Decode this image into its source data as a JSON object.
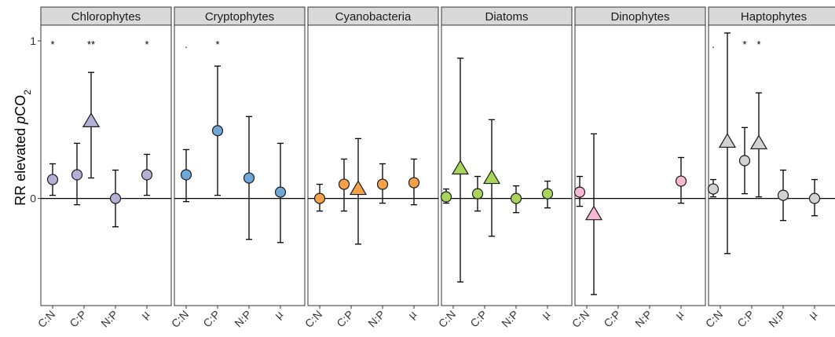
{
  "chart_data": {
    "type": "scatter",
    "subtype": "faceted point-range",
    "ylabel_prefix": "RR elevated ",
    "ylabel_italic": "p",
    "ylabel_main": "CO",
    "ylabel_sub": "2",
    "yticks": [
      0,
      1
    ],
    "ylim": [
      -0.68,
      1.1
    ],
    "categories": [
      "C:N",
      "C:P",
      "N:P",
      "µ"
    ],
    "facets": [
      {
        "name": "Chlorophytes",
        "color": "#b3afd5",
        "points": [
          {
            "cat": "C:N",
            "shape": "circle",
            "y": 0.12,
            "lo": 0.02,
            "hi": 0.22,
            "sig": "*"
          },
          {
            "cat": "C:P",
            "shape": "circle",
            "y": 0.15,
            "lo": -0.04,
            "hi": 0.35,
            "sig": ""
          },
          {
            "cat": "C:P",
            "shape": "triangle",
            "y": 0.49,
            "lo": 0.13,
            "hi": 0.8,
            "sig": "**"
          },
          {
            "cat": "N:P",
            "shape": "circle",
            "y": 0.0,
            "lo": -0.18,
            "hi": 0.18,
            "sig": ""
          },
          {
            "cat": "µ",
            "shape": "circle",
            "y": 0.15,
            "lo": 0.02,
            "hi": 0.28,
            "sig": "*"
          }
        ]
      },
      {
        "name": "Cryptophytes",
        "color": "#6fa8d6",
        "points": [
          {
            "cat": "C:N",
            "shape": "circle",
            "y": 0.15,
            "lo": -0.02,
            "hi": 0.31,
            "sig": "."
          },
          {
            "cat": "C:P",
            "shape": "circle",
            "y": 0.43,
            "lo": 0.02,
            "hi": 0.84,
            "sig": "*"
          },
          {
            "cat": "N:P",
            "shape": "circle",
            "y": 0.13,
            "lo": -0.26,
            "hi": 0.52,
            "sig": ""
          },
          {
            "cat": "µ",
            "shape": "circle",
            "y": 0.04,
            "lo": -0.28,
            "hi": 0.35,
            "sig": ""
          }
        ]
      },
      {
        "name": "Cyanobacteria",
        "color": "#f5a04b",
        "points": [
          {
            "cat": "C:N",
            "shape": "circle",
            "y": 0.0,
            "lo": -0.08,
            "hi": 0.09,
            "sig": ""
          },
          {
            "cat": "C:P",
            "shape": "circle",
            "y": 0.09,
            "lo": -0.08,
            "hi": 0.25,
            "sig": ""
          },
          {
            "cat": "C:P",
            "shape": "triangle",
            "y": 0.06,
            "lo": -0.29,
            "hi": 0.38,
            "sig": ""
          },
          {
            "cat": "N:P",
            "shape": "circle",
            "y": 0.09,
            "lo": -0.03,
            "hi": 0.22,
            "sig": ""
          },
          {
            "cat": "µ",
            "shape": "circle",
            "y": 0.1,
            "lo": -0.04,
            "hi": 0.25,
            "sig": ""
          }
        ]
      },
      {
        "name": "Diatoms",
        "color": "#a8d45a",
        "points": [
          {
            "cat": "C:N",
            "shape": "circle",
            "y": 0.01,
            "lo": -0.03,
            "hi": 0.06,
            "sig": ""
          },
          {
            "cat": "C:N",
            "shape": "triangle",
            "y": 0.19,
            "lo": -0.53,
            "hi": 0.89,
            "sig": ""
          },
          {
            "cat": "C:P",
            "shape": "circle",
            "y": 0.03,
            "lo": -0.08,
            "hi": 0.14,
            "sig": ""
          },
          {
            "cat": "C:P",
            "shape": "triangle",
            "y": 0.13,
            "lo": -0.24,
            "hi": 0.5,
            "sig": ""
          },
          {
            "cat": "N:P",
            "shape": "circle",
            "y": 0.0,
            "lo": -0.09,
            "hi": 0.08,
            "sig": ""
          },
          {
            "cat": "µ",
            "shape": "circle",
            "y": 0.03,
            "lo": -0.06,
            "hi": 0.11,
            "sig": ""
          }
        ]
      },
      {
        "name": "Dinophytes",
        "color": "#f6b8d2",
        "points": [
          {
            "cat": "C:N",
            "shape": "circle",
            "y": 0.04,
            "lo": -0.05,
            "hi": 0.14,
            "sig": ""
          },
          {
            "cat": "C:N",
            "shape": "triangle",
            "y": -0.1,
            "lo": -0.61,
            "hi": 0.41,
            "sig": ""
          },
          {
            "cat": "µ",
            "shape": "circle",
            "y": 0.11,
            "lo": -0.03,
            "hi": 0.26,
            "sig": ""
          }
        ]
      },
      {
        "name": "Haptophytes",
        "color": "#d2d2d2",
        "points": [
          {
            "cat": "C:N",
            "shape": "circle",
            "y": 0.06,
            "lo": 0.01,
            "hi": 0.12,
            "sig": "."
          },
          {
            "cat": "C:N",
            "shape": "triangle",
            "y": 0.36,
            "lo": -0.35,
            "hi": 1.05,
            "sig": ""
          },
          {
            "cat": "C:P",
            "shape": "circle",
            "y": 0.24,
            "lo": 0.03,
            "hi": 0.45,
            "sig": "*"
          },
          {
            "cat": "C:P",
            "shape": "triangle",
            "y": 0.35,
            "lo": 0.01,
            "hi": 0.67,
            "sig": "*"
          },
          {
            "cat": "N:P",
            "shape": "circle",
            "y": 0.02,
            "lo": -0.14,
            "hi": 0.18,
            "sig": ""
          },
          {
            "cat": "µ",
            "shape": "circle",
            "y": 0.0,
            "lo": -0.11,
            "hi": 0.12,
            "sig": ""
          }
        ]
      }
    ]
  }
}
